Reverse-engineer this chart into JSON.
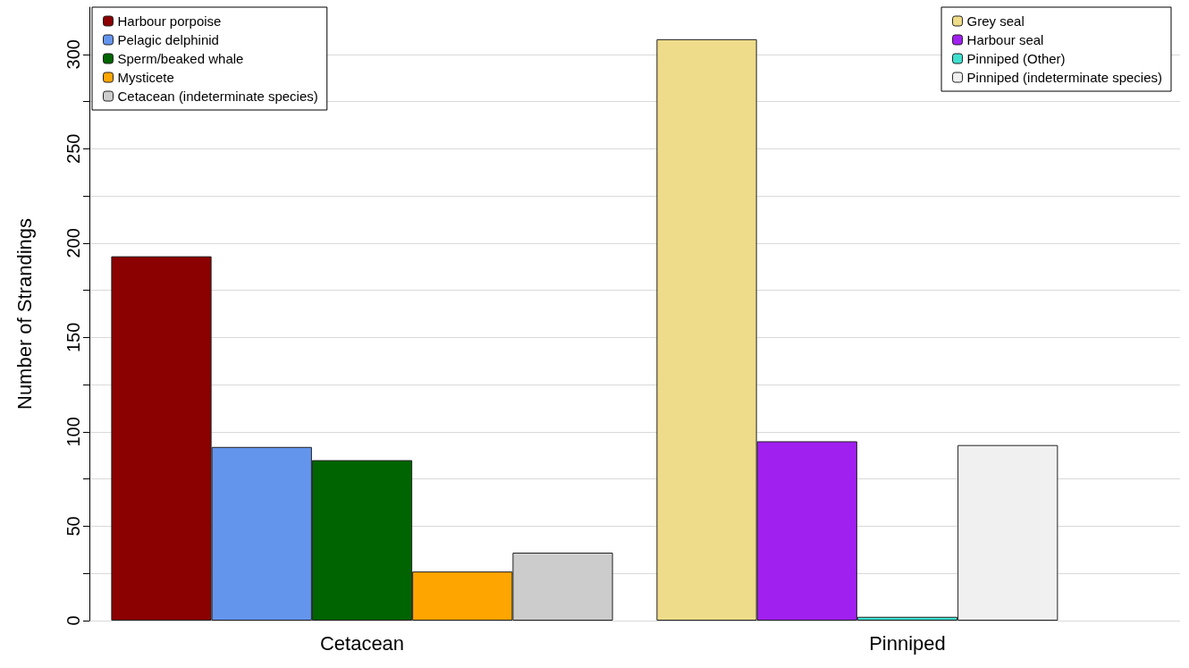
{
  "chart_data": {
    "type": "bar",
    "ylabel": "Number of Strandings",
    "categories": [
      "Cetacean",
      "Pinniped"
    ],
    "series": [
      {
        "name": "Harbour porpoise",
        "color": "#8b0000",
        "values": [
          193,
          null
        ]
      },
      {
        "name": "Pelagic delphinid",
        "color": "#6495ed",
        "values": [
          92,
          null
        ]
      },
      {
        "name": "Sperm/beaked whale",
        "color": "#006400",
        "values": [
          85,
          null
        ]
      },
      {
        "name": "Mysticete",
        "color": "#ffa500",
        "values": [
          26,
          null
        ]
      },
      {
        "name": "Cetacean (indeterminate species)",
        "color": "#cccccc",
        "values": [
          36,
          null
        ]
      },
      {
        "name": "Grey seal",
        "color": "#eedc8a",
        "values": [
          null,
          308
        ]
      },
      {
        "name": "Harbour seal",
        "color": "#a020f0",
        "values": [
          null,
          95
        ]
      },
      {
        "name": "Pinniped (Other)",
        "color": "#40e0d0",
        "values": [
          null,
          2
        ]
      },
      {
        "name": "Pinniped (indeterminate species)",
        "color": "#f0f0f0",
        "values": [
          null,
          93
        ]
      }
    ],
    "ylim": [
      0,
      325
    ],
    "yticks": [
      0,
      {
        "value": 25,
        "label": null
      },
      50,
      {
        "value": 75,
        "label": null
      },
      100,
      {
        "value": 125,
        "label": null
      },
      150,
      {
        "value": 175,
        "label": null
      },
      200,
      {
        "value": 225,
        "label": null
      },
      250,
      {
        "value": 275,
        "label": null
      },
      300
    ],
    "grid": "y",
    "legend": "top"
  }
}
